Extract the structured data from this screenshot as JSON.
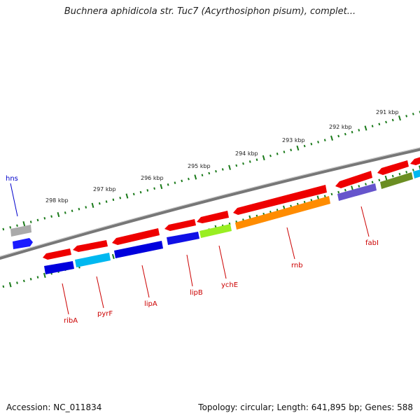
{
  "header": {
    "title": "Buchnera aphidicola str. Tuc7 (Acyrthosiphon pisum), complet..."
  },
  "footer": {
    "accession": "Accession: NC_011834",
    "summary": "Topology: circular; Length: 641,895 bp; Genes: 588"
  },
  "scale_labels": [
    "291 kbp",
    "292 kbp",
    "293 kbp",
    "294 kbp",
    "295 kbp",
    "296 kbp",
    "297 kbp",
    "298 kbp"
  ],
  "genes": [
    {
      "name": "hns",
      "color": "#1a1aff",
      "label_color": "#0000cc"
    },
    {
      "name": "ribA",
      "color": "#0000dd",
      "label_color": "#cc0000"
    },
    {
      "name": "pyrF",
      "color": "#00b8f0",
      "label_color": "#cc0000"
    },
    {
      "name": "lipA",
      "color": "#0000dd",
      "label_color": "#cc0000"
    },
    {
      "name": "lipB",
      "color": "#1010e6",
      "label_color": "#cc0000"
    },
    {
      "name": "ychE",
      "color": "#99ee22",
      "label_color": "#cc0000"
    },
    {
      "name": "rnb",
      "color": "#ff8c00",
      "label_color": "#cc0000"
    },
    {
      "name": "fabI",
      "color": "#6655cc",
      "label_color": "#cc0000"
    }
  ],
  "colors": {
    "forward_gene": "#ee0000",
    "unlabeled_gray": "#aaaaaa",
    "olive_gene": "#6b8e23",
    "cyan_gene": "#00b8f0",
    "scale_ticks": "#1a7a1a",
    "backbone": "#7a7a7a"
  }
}
